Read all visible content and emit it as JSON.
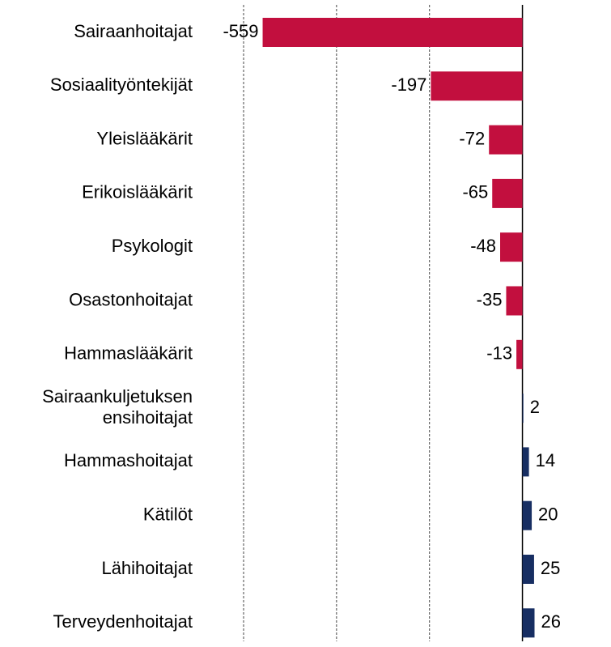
{
  "chart_data": {
    "type": "hbar",
    "categories": [
      "Sairaanhoitajat",
      "Sosiaalityöntekijät",
      "Yleislääkärit",
      "Erikoislääkärit",
      "Psykologit",
      "Osastonhoitajat",
      "Hammaslääkärit",
      "Sairaankuljetuksen\nensihoitajat",
      "Hammashoitajat",
      "Kätilöt",
      "Lähihoitajat",
      "Terveydenhoitajat"
    ],
    "values": [
      -559,
      -197,
      -72,
      -65,
      -48,
      -35,
      -13,
      2,
      14,
      20,
      25,
      26
    ],
    "negative_color": "#c20f3e",
    "positive_color": "#172e62",
    "xlim": [
      -600,
      100
    ],
    "xticks": [
      -600,
      -400,
      -200,
      0
    ],
    "grid": true
  }
}
